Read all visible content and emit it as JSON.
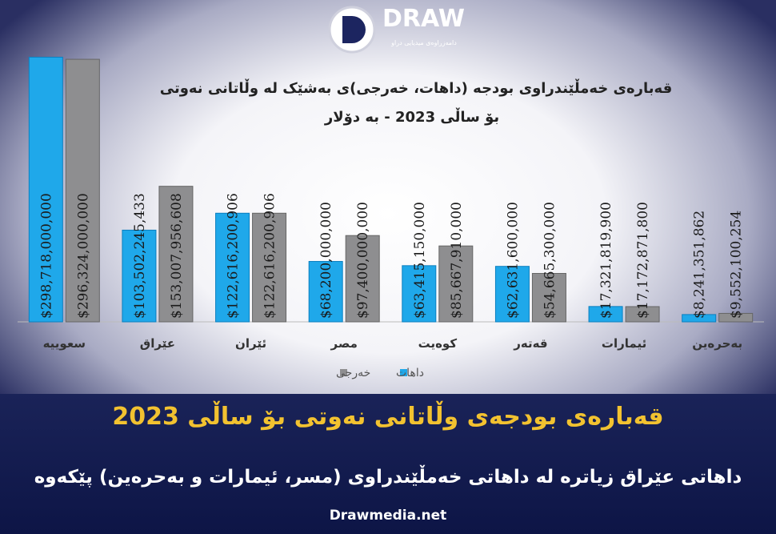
{
  "logo": {
    "name": "DRAW",
    "tagline": "دامەزراوەی میدیایی دراو"
  },
  "chart_data": {
    "type": "bar",
    "title": [
      "قەبارەی خەمڵێندراوی بودجە (داهات، خەرجی)ی بەشێک لە وڵاتانی نەوتی",
      "بۆ ساڵی 2023 - بە دۆلار"
    ],
    "categories": [
      "سعوییە",
      "عێراق",
      "ئێران",
      "مصر",
      "کوەیت",
      "قەتەر",
      "ئیمارات",
      "بەحرەین"
    ],
    "series": [
      {
        "name": "داهات",
        "color": "#1fa8ea",
        "values": [
          298718000000,
          103502245433,
          122616200906,
          68200000000,
          63415150000,
          62631600000,
          17321819900,
          8241351862
        ],
        "value_labels": [
          "$298,718,000,000",
          "$103,502,245,433",
          "$122,616,200,906",
          "$68,200,000,000",
          "$63,415,150,000",
          "$62,631,600,000",
          "$17,321,819,900",
          "$8,241,351,862"
        ]
      },
      {
        "name": "خەرجی",
        "color": "#8e8e90",
        "values": [
          296324000000,
          153007956608,
          122616200906,
          97400000000,
          85667910000,
          54665300000,
          17172871800,
          9552100254
        ],
        "value_labels": [
          "$296,324,000,000",
          "$153,007,956,608",
          "$122,616,200,906",
          "$97,400,000,000",
          "$85,667,910,000",
          "$54,665,300,000",
          "$17,172,871,800",
          "$9,552,100,254"
        ]
      }
    ],
    "ylim": [
      0,
      300000000000
    ]
  },
  "headline": "قەبارەی بودجەی وڵاتانی نەوتی بۆ ساڵی 2023",
  "subheadline": "داهاتی عێراق زیاترە لە داهاتی خەمڵێندراوی (مسر، ئیمارات و بەحرەین) پێکەوە",
  "footer": "Drawmedia.net"
}
